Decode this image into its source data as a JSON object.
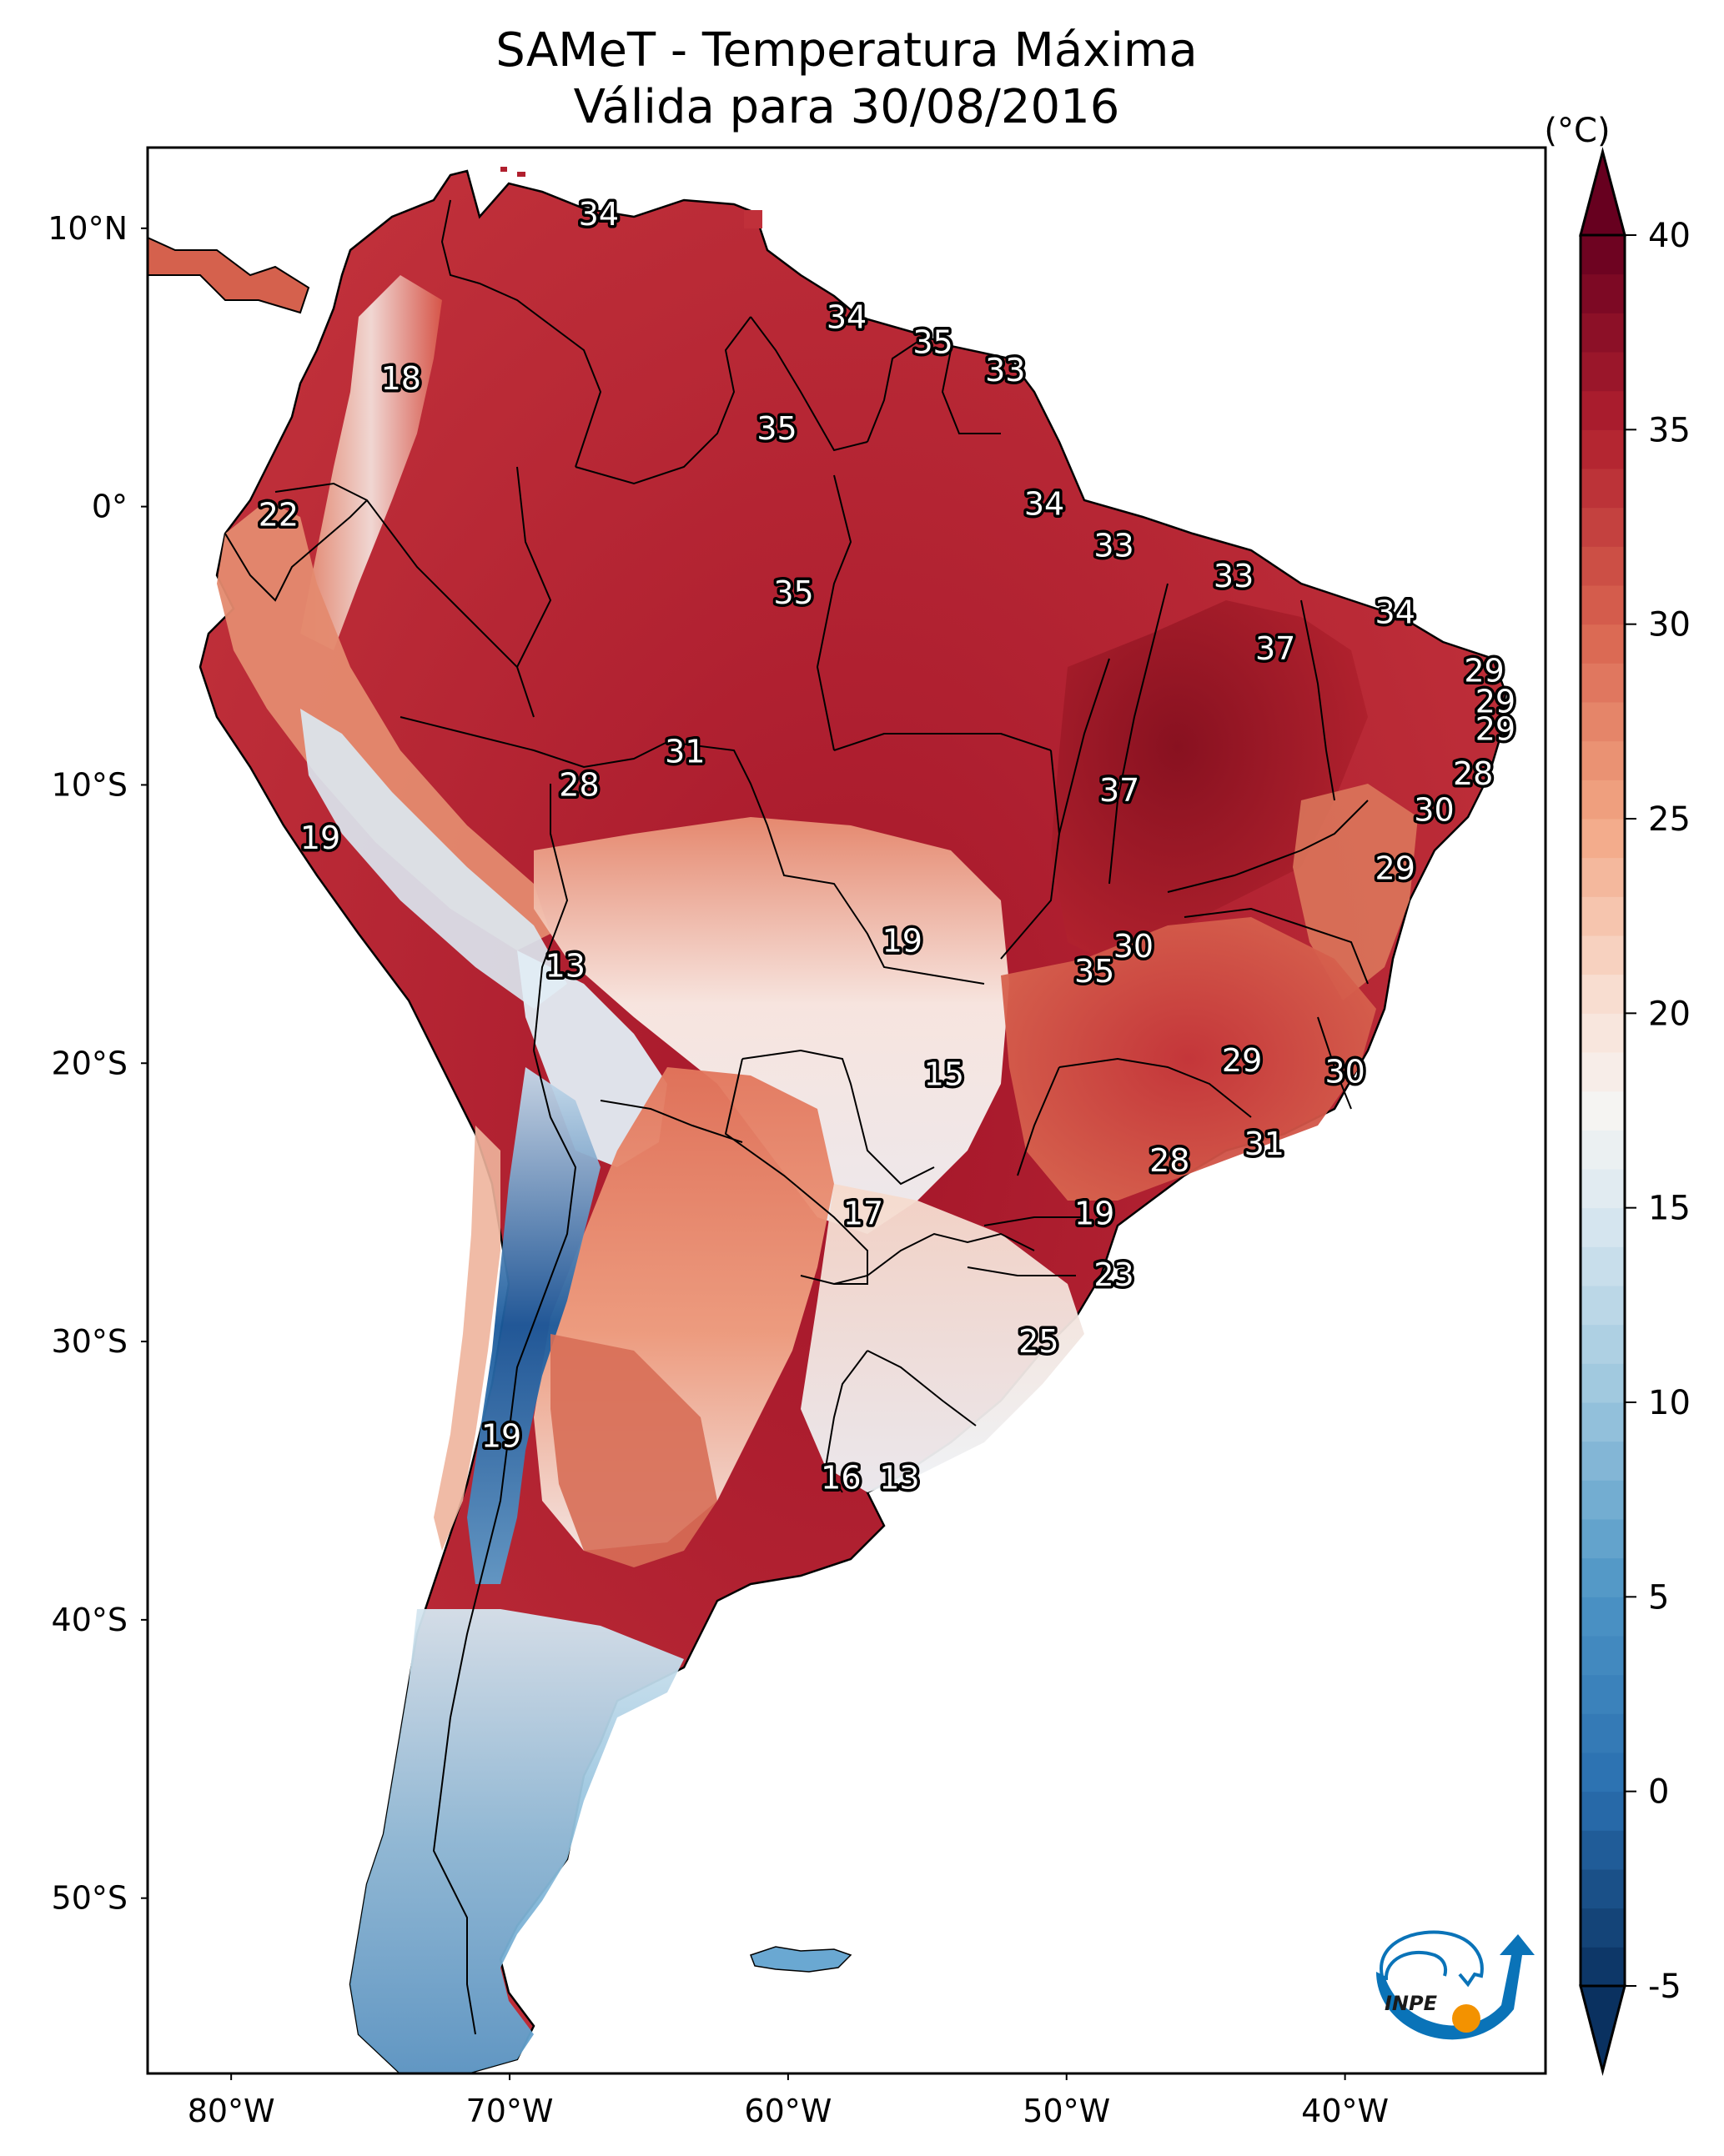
{
  "title": {
    "line1": "SAMeT - Temperatura Máxima",
    "line2": "Válida para 30/08/2016"
  },
  "logo": {
    "text": "INPE",
    "colors": {
      "blue": "#0a73b8",
      "orange": "#f39200",
      "text": "#1a1a1a"
    }
  },
  "chart_data": {
    "type": "heatmap",
    "title": "SAMeT - Temperatura Máxima — Válida para 30/08/2016",
    "xlabel": "",
    "ylabel": "",
    "projection": "equirectangular",
    "xlim": [
      -83.0,
      -32.8
    ],
    "ylim": [
      -56.3,
      12.9
    ],
    "x_ticks": [
      {
        "value": -80,
        "label": "80°W"
      },
      {
        "value": -70,
        "label": "70°W"
      },
      {
        "value": -60,
        "label": "60°W"
      },
      {
        "value": -50,
        "label": "50°W"
      },
      {
        "value": -40,
        "label": "40°W"
      }
    ],
    "y_ticks": [
      {
        "value": 10,
        "label": "10°N"
      },
      {
        "value": 0,
        "label": "0°"
      },
      {
        "value": -10,
        "label": "10°S"
      },
      {
        "value": -20,
        "label": "20°S"
      },
      {
        "value": -30,
        "label": "30°S"
      },
      {
        "value": -40,
        "label": "40°S"
      },
      {
        "value": -50,
        "label": "50°S"
      }
    ],
    "grid": false,
    "colorbar": {
      "unit": "(°C)",
      "colormap": "RdBu_r",
      "range": [
        -5,
        40
      ],
      "extend": "both",
      "ticks": [
        -5,
        0,
        5,
        10,
        15,
        20,
        25,
        30,
        35,
        40
      ],
      "placement": "right",
      "stops": [
        {
          "value": -5,
          "color": "#0a3160"
        },
        {
          "value": 0,
          "color": "#2a6fb0"
        },
        {
          "value": 5,
          "color": "#4c94c5"
        },
        {
          "value": 10,
          "color": "#9ac5dd"
        },
        {
          "value": 15,
          "color": "#dce9f1"
        },
        {
          "value": 17.5,
          "color": "#f5f4f2"
        },
        {
          "value": 20,
          "color": "#f9e3d8"
        },
        {
          "value": 25,
          "color": "#f2a683"
        },
        {
          "value": 30,
          "color": "#d8634f"
        },
        {
          "value": 35,
          "color": "#b01f2e"
        },
        {
          "value": 40,
          "color": "#67001f"
        }
      ]
    },
    "station_labels": [
      {
        "lon": -66.8,
        "lat": 10.5,
        "value": 34
      },
      {
        "lon": -73.9,
        "lat": 4.6,
        "value": 18
      },
      {
        "lon": -57.9,
        "lat": 6.8,
        "value": 34
      },
      {
        "lon": -54.8,
        "lat": 5.9,
        "value": 35
      },
      {
        "lon": -52.2,
        "lat": 4.9,
        "value": 33
      },
      {
        "lon": -60.4,
        "lat": 2.8,
        "value": 35
      },
      {
        "lon": -78.3,
        "lat": -0.3,
        "value": 22
      },
      {
        "lon": -50.8,
        "lat": 0.1,
        "value": 34
      },
      {
        "lon": -48.3,
        "lat": -1.4,
        "value": 33
      },
      {
        "lon": -59.8,
        "lat": -3.1,
        "value": 35
      },
      {
        "lon": -44.0,
        "lat": -2.5,
        "value": 33
      },
      {
        "lon": -38.2,
        "lat": -3.8,
        "value": 34
      },
      {
        "lon": -42.5,
        "lat": -5.1,
        "value": 37
      },
      {
        "lon": -35.0,
        "lat": -5.9,
        "value": 29
      },
      {
        "lon": -34.6,
        "lat": -7.0,
        "value": 29
      },
      {
        "lon": -34.6,
        "lat": -8.0,
        "value": 29
      },
      {
        "lon": -63.7,
        "lat": -8.8,
        "value": 31
      },
      {
        "lon": -67.5,
        "lat": -10.0,
        "value": 28
      },
      {
        "lon": -48.1,
        "lat": -10.2,
        "value": 37
      },
      {
        "lon": -35.4,
        "lat": -9.6,
        "value": 28
      },
      {
        "lon": -36.8,
        "lat": -10.9,
        "value": 30
      },
      {
        "lon": -76.8,
        "lat": -11.9,
        "value": 19
      },
      {
        "lon": -38.2,
        "lat": -13.0,
        "value": 29
      },
      {
        "lon": -68.0,
        "lat": -16.5,
        "value": 13
      },
      {
        "lon": -55.9,
        "lat": -15.6,
        "value": 19
      },
      {
        "lon": -47.6,
        "lat": -15.8,
        "value": 30
      },
      {
        "lon": -49.0,
        "lat": -16.7,
        "value": 35
      },
      {
        "lon": -54.4,
        "lat": -20.4,
        "value": 15
      },
      {
        "lon": -43.7,
        "lat": -19.9,
        "value": 29
      },
      {
        "lon": -40.0,
        "lat": -20.3,
        "value": 30
      },
      {
        "lon": -42.9,
        "lat": -22.9,
        "value": 31
      },
      {
        "lon": -46.3,
        "lat": -23.5,
        "value": 28
      },
      {
        "lon": -57.3,
        "lat": -25.4,
        "value": 17
      },
      {
        "lon": -49.0,
        "lat": -25.4,
        "value": 19
      },
      {
        "lon": -48.3,
        "lat": -27.6,
        "value": 23
      },
      {
        "lon": -51.0,
        "lat": -30.0,
        "value": 25
      },
      {
        "lon": -70.3,
        "lat": -33.4,
        "value": 19
      },
      {
        "lon": -58.1,
        "lat": -34.9,
        "value": 16
      },
      {
        "lon": -56.0,
        "lat": -34.9,
        "value": 13
      }
    ],
    "field_regions": [
      {
        "name": "northern-south-america",
        "approx_value": 34
      },
      {
        "name": "amazon",
        "approx_value": 35
      },
      {
        "name": "northeast-brazil-interior",
        "approx_value": 37
      },
      {
        "name": "central-andes-altiplano",
        "approx_value": 12
      },
      {
        "name": "chaco-northern-argentina",
        "approx_value": 27
      },
      {
        "name": "pampas-uruguay",
        "approx_value": 16
      },
      {
        "name": "central-andes-high",
        "approx_value": 2
      },
      {
        "name": "patagonia",
        "approx_value": 8
      }
    ]
  }
}
